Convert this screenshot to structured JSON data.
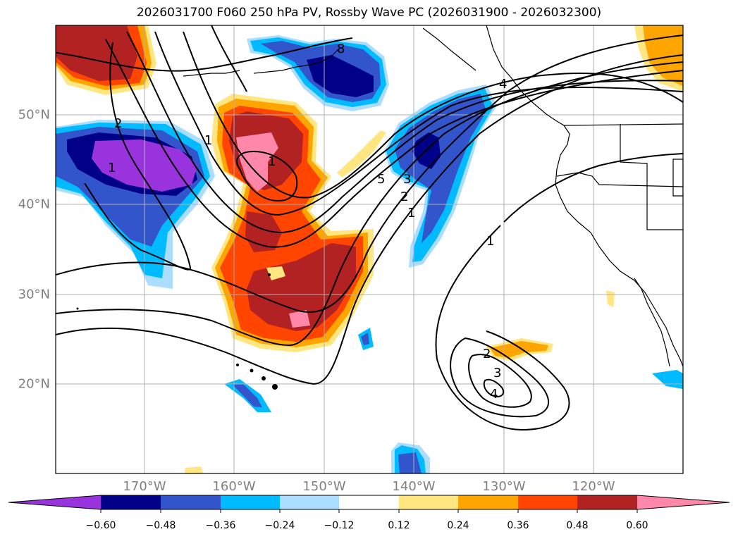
{
  "title": "2026031700 F060 250 hPa PV, Rossby Wave PC (2026031900 - 2026032300)",
  "latitude_labels": [
    "50°N",
    "40°N",
    "30°N",
    "20°N"
  ],
  "longitude_labels": [
    "170°W",
    "160°W",
    "150°W",
    "140°W",
    "130°W",
    "120°W"
  ],
  "contour_labels": [
    "2",
    "1",
    "1",
    "8",
    "5",
    "3",
    "2",
    "1",
    "1",
    "2",
    "3",
    "4",
    "4",
    "1"
  ],
  "colorbar": {
    "ticks": [
      "−0.60",
      "−0.48",
      "−0.36",
      "−0.24",
      "−0.12",
      "0.12",
      "0.24",
      "0.36",
      "0.48",
      "0.60"
    ],
    "colors": [
      "#9933dd",
      "#000088",
      "#3355cc",
      "#00bbff",
      "#aaddff",
      "#ffffff",
      "#ffe680",
      "#ffa500",
      "#ff4500",
      "#b22222",
      "#ff88aa"
    ]
  },
  "palette": {
    "purple": "#9933dd",
    "navy": "#000088",
    "royal": "#3355cc",
    "sky": "#00bbff",
    "pale": "#aaddff",
    "yellow": "#ffe680",
    "orange": "#ffa500",
    "redorange": "#ff4500",
    "firebrick": "#b22222",
    "pink": "#ff88aa"
  }
}
